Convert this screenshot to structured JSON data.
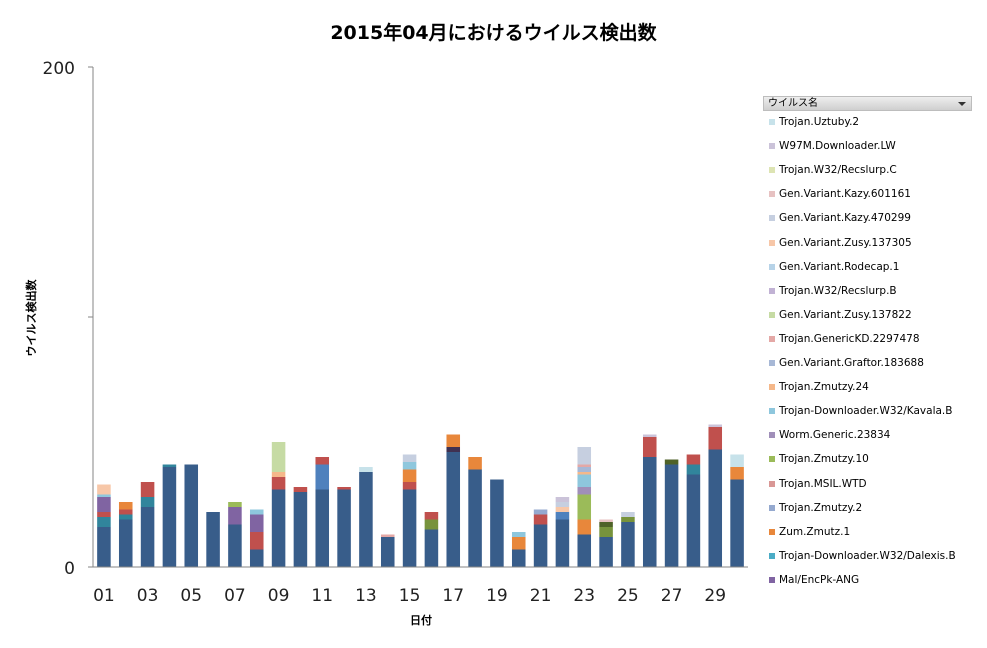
{
  "chart_data": {
    "type": "bar",
    "stacked": true,
    "title": "2015年04月におけるウイルス検出数",
    "xlabel": "日付",
    "ylabel": "ウイルス検出数",
    "ylim": [
      0,
      200
    ],
    "y_ticks": [
      "0",
      "200"
    ],
    "x_tick_labels": [
      "01",
      "03",
      "05",
      "07",
      "09",
      "11",
      "13",
      "15",
      "17",
      "19",
      "21",
      "23",
      "25",
      "27",
      "29"
    ],
    "categories": [
      "01",
      "02",
      "03",
      "04",
      "05",
      "06",
      "07",
      "08",
      "09",
      "10",
      "11",
      "12",
      "13",
      "14",
      "15",
      "16",
      "17",
      "18",
      "19",
      "20",
      "21",
      "22",
      "23",
      "24",
      "25",
      "26",
      "27",
      "28",
      "29",
      "30"
    ],
    "legend_placement": "right",
    "legend_header": "ウイルス名",
    "series": [
      {
        "name": "Trojan.Uztuby.2",
        "color": "#c7e2ea",
        "values": [
          0,
          0,
          0,
          0,
          0,
          0,
          0,
          0,
          0,
          0,
          0,
          0,
          2,
          0,
          0,
          0,
          0,
          0,
          0,
          0,
          0,
          0,
          0,
          0,
          0,
          0,
          0,
          0,
          0,
          5
        ]
      },
      {
        "name": "W97M.Downloader.LW",
        "color": "#cbc3d9",
        "values": [
          0,
          0,
          0,
          0,
          0,
          0,
          0,
          0,
          0,
          0,
          0,
          0,
          0,
          0,
          0,
          0,
          0,
          0,
          0,
          0,
          0,
          2,
          0,
          0,
          0,
          1,
          0,
          0,
          1,
          0
        ]
      },
      {
        "name": "Trojan.W32/Recslurp.C",
        "color": "#dde4b3",
        "values": [
          0,
          0,
          0,
          0,
          0,
          0,
          0,
          0,
          0,
          0,
          0,
          0,
          0,
          0,
          0,
          0,
          0,
          0,
          0,
          0,
          0,
          0,
          0,
          0,
          0,
          0,
          0,
          0,
          0,
          0
        ]
      },
      {
        "name": "Gen.Variant.Kazy.601161",
        "color": "#e7c2c2",
        "values": [
          0,
          0,
          0,
          0,
          0,
          0,
          0,
          0,
          0,
          0,
          0,
          0,
          0,
          0,
          0,
          0,
          0,
          0,
          0,
          0,
          0,
          0,
          0,
          1,
          0,
          0,
          0,
          0,
          0,
          0
        ]
      },
      {
        "name": "Gen.Variant.Kazy.470299",
        "color": "#c6cfe0",
        "values": [
          0,
          0,
          0,
          0,
          0,
          0,
          0,
          0,
          0,
          0,
          0,
          0,
          0,
          0,
          3,
          0,
          0,
          0,
          0,
          0,
          0,
          2,
          7,
          0,
          2,
          0,
          0,
          0,
          0,
          0
        ]
      },
      {
        "name": "Gen.Variant.Zusy.137305",
        "color": "#f7c7a8",
        "values": [
          4,
          0,
          0,
          0,
          0,
          0,
          0,
          0,
          0,
          0,
          0,
          0,
          0,
          0,
          0,
          0,
          0,
          0,
          0,
          0,
          0,
          2,
          0,
          0,
          0,
          0,
          0,
          0,
          0,
          0
        ]
      },
      {
        "name": "Gen.Variant.Rodecap.1",
        "color": "#b7d3e8",
        "values": [
          0,
          0,
          0,
          0,
          0,
          0,
          0,
          0,
          0,
          0,
          0,
          0,
          0,
          0,
          0,
          0,
          0,
          0,
          0,
          0,
          0,
          0,
          0,
          0,
          0,
          0,
          0,
          0,
          0,
          0
        ]
      },
      {
        "name": "Trojan.W32/Recslurp.B",
        "color": "#c1b2d4",
        "values": [
          0,
          0,
          0,
          0,
          0,
          0,
          0,
          0,
          0,
          0,
          0,
          0,
          0,
          0,
          0,
          0,
          0,
          0,
          0,
          0,
          0,
          0,
          0,
          0,
          0,
          0,
          0,
          0,
          0,
          0
        ]
      },
      {
        "name": "Gen.Variant.Zusy.137822",
        "color": "#c6dba4",
        "values": [
          0,
          0,
          0,
          0,
          0,
          0,
          0,
          0,
          12,
          0,
          0,
          0,
          0,
          0,
          0,
          0,
          0,
          0,
          0,
          0,
          0,
          0,
          0,
          0,
          0,
          0,
          0,
          0,
          0,
          0
        ]
      },
      {
        "name": "Trojan.GenericKD.2297478",
        "color": "#e4a8a6",
        "values": [
          0,
          0,
          0,
          0,
          0,
          0,
          0,
          0,
          0,
          0,
          0,
          0,
          0,
          1,
          0,
          0,
          0,
          0,
          0,
          0,
          0,
          0,
          1,
          0,
          0,
          0,
          0,
          0,
          0,
          0
        ]
      },
      {
        "name": "Gen.Variant.Graftor.183688",
        "color": "#a7b8d6",
        "values": [
          0,
          0,
          0,
          0,
          0,
          0,
          0,
          0,
          0,
          0,
          0,
          0,
          0,
          0,
          0,
          0,
          0,
          0,
          0,
          0,
          0,
          0,
          2,
          0,
          0,
          0,
          0,
          0,
          0,
          0
        ]
      },
      {
        "name": "Trojan.Zmutzy.24",
        "color": "#f5b88a",
        "values": [
          0,
          0,
          0,
          0,
          0,
          0,
          0,
          0,
          2,
          0,
          0,
          0,
          0,
          0,
          0,
          0,
          0,
          0,
          0,
          0,
          0,
          0,
          1,
          0,
          0,
          0,
          0,
          0,
          0,
          0
        ]
      },
      {
        "name": "Trojan-Downloader.W32/Kavala.B",
        "color": "#8ec7dd",
        "values": [
          1,
          0,
          0,
          0,
          0,
          0,
          0,
          2,
          0,
          0,
          0,
          0,
          0,
          0,
          3,
          0,
          0,
          0,
          0,
          2,
          0,
          0,
          5,
          0,
          0,
          0,
          0,
          0,
          0,
          0
        ]
      },
      {
        "name": "Worm.Generic.23834",
        "color": "#a08fb9",
        "values": [
          0,
          0,
          0,
          0,
          0,
          0,
          0,
          0,
          0,
          0,
          0,
          0,
          0,
          0,
          0,
          0,
          0,
          0,
          0,
          0,
          0,
          0,
          3,
          0,
          0,
          0,
          0,
          0,
          0,
          0
        ]
      },
      {
        "name": "Trojan.Zmutzy.10",
        "color": "#9bbb59",
        "values": [
          0,
          0,
          0,
          0,
          0,
          0,
          2,
          0,
          0,
          0,
          0,
          0,
          0,
          0,
          0,
          0,
          0,
          0,
          0,
          0,
          0,
          0,
          10,
          0,
          0,
          0,
          0,
          0,
          0,
          0
        ]
      },
      {
        "name": "Trojan.MSIL.WTD",
        "color": "#d99795",
        "values": [
          0,
          0,
          0,
          0,
          0,
          0,
          0,
          0,
          0,
          0,
          0,
          0,
          0,
          0,
          0,
          0,
          0,
          0,
          0,
          0,
          0,
          0,
          0,
          0,
          0,
          0,
          0,
          0,
          0,
          0
        ]
      },
      {
        "name": "Trojan.Zmutzy.2",
        "color": "#95a9cf",
        "values": [
          0,
          0,
          0,
          0,
          0,
          0,
          0,
          0,
          0,
          0,
          0,
          0,
          0,
          0,
          0,
          0,
          0,
          0,
          0,
          0,
          2,
          0,
          0,
          0,
          0,
          0,
          0,
          0,
          0,
          0
        ]
      },
      {
        "name": "Zum.Zmutz.1",
        "color": "#e8873b",
        "values": [
          0,
          3,
          0,
          0,
          0,
          0,
          0,
          0,
          0,
          0,
          0,
          0,
          0,
          0,
          5,
          0,
          5,
          5,
          0,
          5,
          0,
          0,
          6,
          0,
          0,
          0,
          0,
          0,
          0,
          5
        ]
      },
      {
        "name": "Trojan-Downloader.W32/Dalexis.B",
        "color": "#4bacc6",
        "values": [
          0,
          0,
          0,
          0,
          0,
          0,
          0,
          0,
          0,
          0,
          0,
          0,
          0,
          0,
          0,
          0,
          0,
          0,
          0,
          0,
          0,
          0,
          0,
          0,
          0,
          0,
          0,
          0,
          0,
          0
        ]
      },
      {
        "name": "Mal/EncPk-ANG",
        "color": "#8064a2",
        "values": [
          6,
          0,
          0,
          0,
          0,
          0,
          7,
          7,
          0,
          0,
          0,
          0,
          0,
          0,
          0,
          0,
          0,
          0,
          0,
          0,
          0,
          0,
          0,
          0,
          0,
          0,
          0,
          0,
          0,
          0
        ]
      },
      {
        "name": "",
        "color": "#c0504d",
        "values": [
          2,
          2,
          6,
          0,
          0,
          0,
          0,
          7,
          5,
          2,
          3,
          1,
          0,
          0,
          3,
          3,
          0,
          0,
          0,
          0,
          4,
          0,
          0,
          0,
          0,
          8,
          0,
          4,
          9,
          0
        ]
      },
      {
        "name": "",
        "color": "#4f81bd",
        "values": [
          0,
          0,
          0,
          0,
          0,
          0,
          0,
          0,
          0,
          0,
          10,
          0,
          0,
          0,
          0,
          0,
          0,
          0,
          0,
          0,
          0,
          3,
          0,
          0,
          0,
          0,
          0,
          0,
          0,
          0
        ]
      },
      {
        "name": "",
        "color": "#4f6228",
        "values": [
          0,
          0,
          0,
          0,
          0,
          0,
          0,
          0,
          0,
          0,
          0,
          0,
          0,
          0,
          0,
          0,
          0,
          0,
          0,
          0,
          0,
          0,
          0,
          2,
          0,
          0,
          2,
          0,
          0,
          0
        ]
      },
      {
        "name": "",
        "color": "#77933c",
        "values": [
          0,
          0,
          0,
          0,
          0,
          0,
          0,
          0,
          0,
          0,
          0,
          0,
          0,
          0,
          0,
          4,
          0,
          0,
          0,
          0,
          0,
          0,
          0,
          4,
          2,
          0,
          0,
          0,
          0,
          0
        ]
      },
      {
        "name": "",
        "color": "#31859c",
        "values": [
          4,
          2,
          4,
          1,
          0,
          0,
          0,
          0,
          0,
          0,
          0,
          0,
          0,
          0,
          0,
          0,
          0,
          0,
          0,
          0,
          0,
          0,
          0,
          0,
          0,
          0,
          0,
          4,
          0,
          0
        ]
      },
      {
        "name": "",
        "color": "#403151",
        "values": [
          0,
          0,
          0,
          0,
          0,
          0,
          0,
          0,
          0,
          0,
          0,
          0,
          0,
          0,
          0,
          0,
          2,
          0,
          0,
          0,
          0,
          0,
          0,
          0,
          0,
          0,
          0,
          0,
          0,
          0
        ]
      },
      {
        "name": "",
        "color": "#632523",
        "values": [
          0,
          0,
          0,
          0,
          0,
          0,
          0,
          0,
          0,
          0,
          0,
          0,
          0,
          0,
          0,
          0,
          0,
          0,
          0,
          0,
          0,
          0,
          0,
          0,
          0,
          0,
          0,
          0,
          0,
          0
        ]
      },
      {
        "name": "",
        "color": "#385d8a",
        "values": [
          16,
          19,
          24,
          40,
          41,
          22,
          17,
          7,
          31,
          30,
          31,
          31,
          38,
          12,
          31,
          15,
          46,
          39,
          35,
          7,
          17,
          19,
          13,
          12,
          18,
          44,
          41,
          37,
          47,
          35
        ]
      }
    ]
  }
}
